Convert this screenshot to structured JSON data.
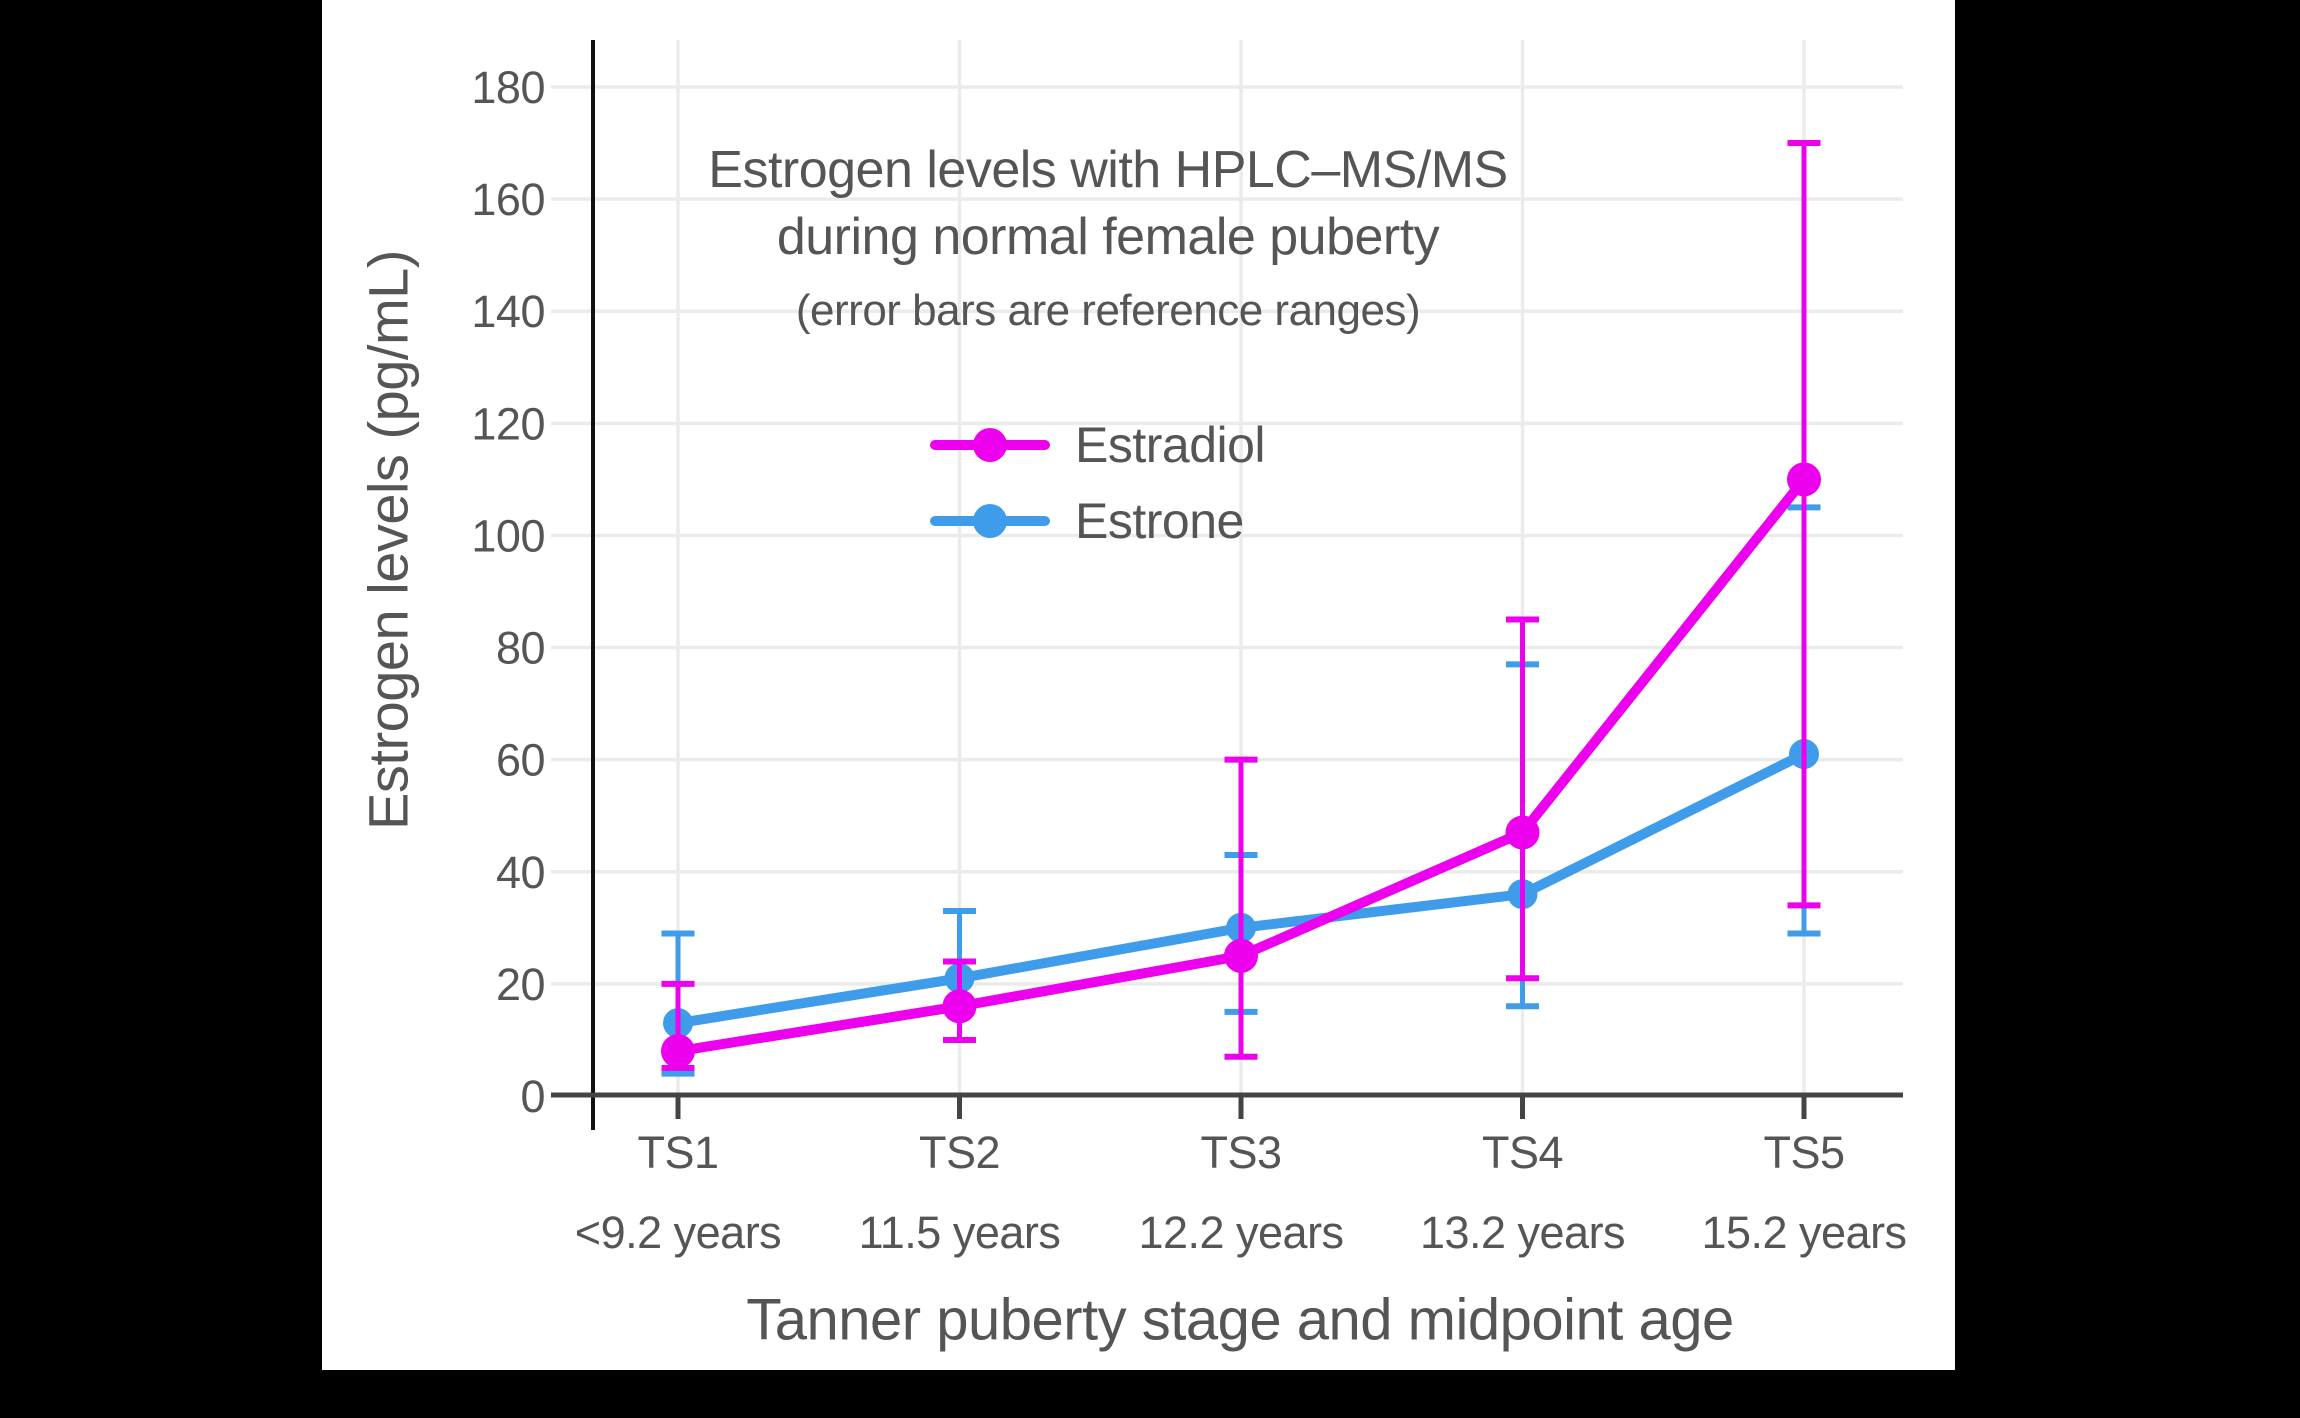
{
  "chart_data": {
    "type": "line",
    "title_line1": "Estrogen levels with HPLC–MS/MS",
    "title_line2": "during normal female puberty",
    "subtitle": "(error bars are reference ranges)",
    "ylabel": "Estrogen levels (pg/mL)",
    "xlabel": "Tanner puberty stage and midpoint age",
    "categories": [
      "TS1",
      "TS2",
      "TS3",
      "TS4",
      "TS5"
    ],
    "category_ages": [
      "<9.2 years",
      "11.5 years",
      "12.2 years",
      "13.2 years",
      "15.2 years"
    ],
    "ylim": [
      0,
      180
    ],
    "yticks": [
      0,
      20,
      40,
      60,
      80,
      100,
      120,
      140,
      160,
      180
    ],
    "grid": true,
    "error_bars": "reference ranges",
    "legend": {
      "position": "upper-left-inside",
      "items": [
        {
          "label": "Estradiol",
          "color": "#ED00ED"
        },
        {
          "label": "Estrone",
          "color": "#3E9CEA"
        }
      ]
    },
    "series": [
      {
        "name": "Estrone",
        "color": "#3E9CEA",
        "values": [
          13,
          21,
          30,
          36,
          61
        ],
        "err_low": [
          4,
          10,
          15,
          16,
          29
        ],
        "err_high": [
          29,
          33,
          43,
          77,
          105
        ]
      },
      {
        "name": "Estradiol",
        "color": "#ED00ED",
        "values": [
          8,
          16,
          25,
          47,
          110
        ],
        "err_low": [
          5,
          10,
          7,
          21,
          34
        ],
        "err_high": [
          20,
          24,
          60,
          85,
          170
        ]
      }
    ],
    "colors": {
      "background": "#000000",
      "panel": "#ffffff",
      "text": "#555555",
      "grid": "#ebebeb",
      "x_axis": "#444444",
      "y_axis": "#111111"
    }
  }
}
